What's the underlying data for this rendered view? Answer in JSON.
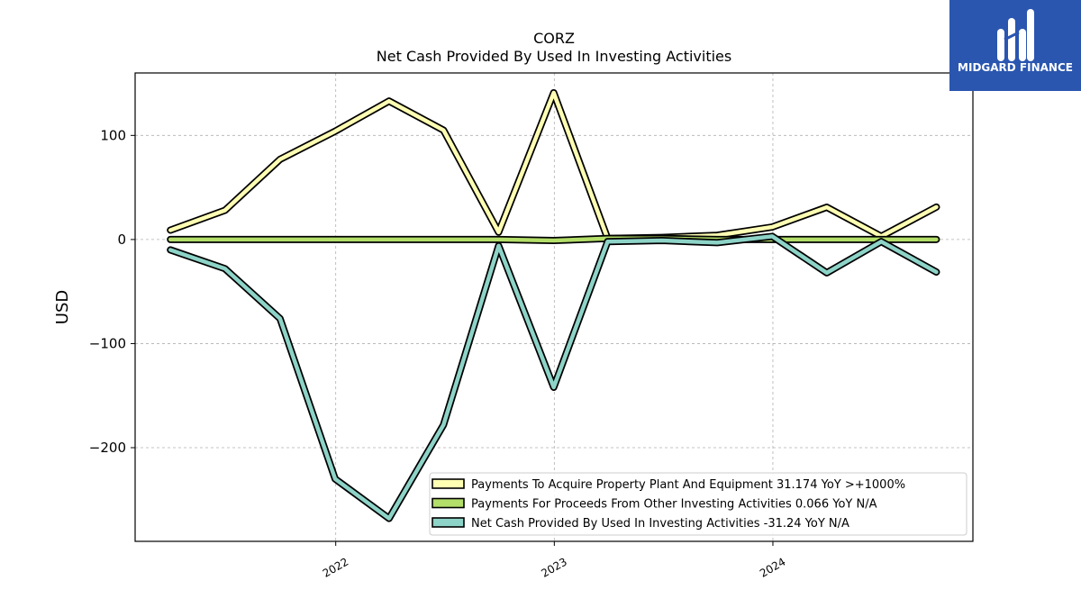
{
  "logo": {
    "text": "MIDGARD FINANCE",
    "bg_color": "#2a56b0"
  },
  "chart_data": {
    "type": "line",
    "title": "CORZ",
    "subtitle": "Net Cash Provided By Used In Investing Activities",
    "xlabel": "",
    "ylabel": "USD",
    "x": [
      "2021-03-31",
      "2021-06-30",
      "2021-09-30",
      "2021-12-31",
      "2022-03-31",
      "2022-06-30",
      "2022-09-30",
      "2022-12-31",
      "2023-03-31",
      "2023-06-30",
      "2023-09-30",
      "2023-12-31",
      "2024-03-31",
      "2024-06-30",
      "2024-09-30"
    ],
    "xlim": [
      "2021-01-31",
      "2024-11-30"
    ],
    "ylim": [
      -290,
      160
    ],
    "x_ticks": [
      "2022",
      "2023",
      "2024"
    ],
    "y_ticks": [
      100,
      0,
      -100,
      -200
    ],
    "y_tick_labels": [
      "100",
      "0",
      "−100",
      "−200"
    ],
    "grid": true,
    "legend_position": "lower-right",
    "series": [
      {
        "name": "Payments To Acquire Property Plant And Equipment  31.174 YoY >+1000%",
        "color": "#ffffb3",
        "values": [
          9,
          28,
          77,
          104,
          133,
          105,
          7,
          141,
          1,
          2,
          4,
          12,
          31,
          3,
          31.174
        ]
      },
      {
        "name": "Payments For Proceeds From Other Investing Activities  0.066 YoY N/A",
        "color": "#b3de69",
        "values": [
          0,
          0,
          0,
          0,
          0,
          0,
          0,
          -1,
          1,
          1,
          0,
          0,
          0,
          0,
          0.066
        ]
      },
      {
        "name": "Net Cash Provided By Used In Investing Activities  -31.24 YoY N/A",
        "color": "#8dd3c7",
        "values": [
          -10,
          -28,
          -76,
          -230,
          -268,
          -178,
          -6,
          -142,
          -2,
          -1,
          -3,
          3,
          -32,
          -2,
          -31.24
        ]
      }
    ]
  }
}
